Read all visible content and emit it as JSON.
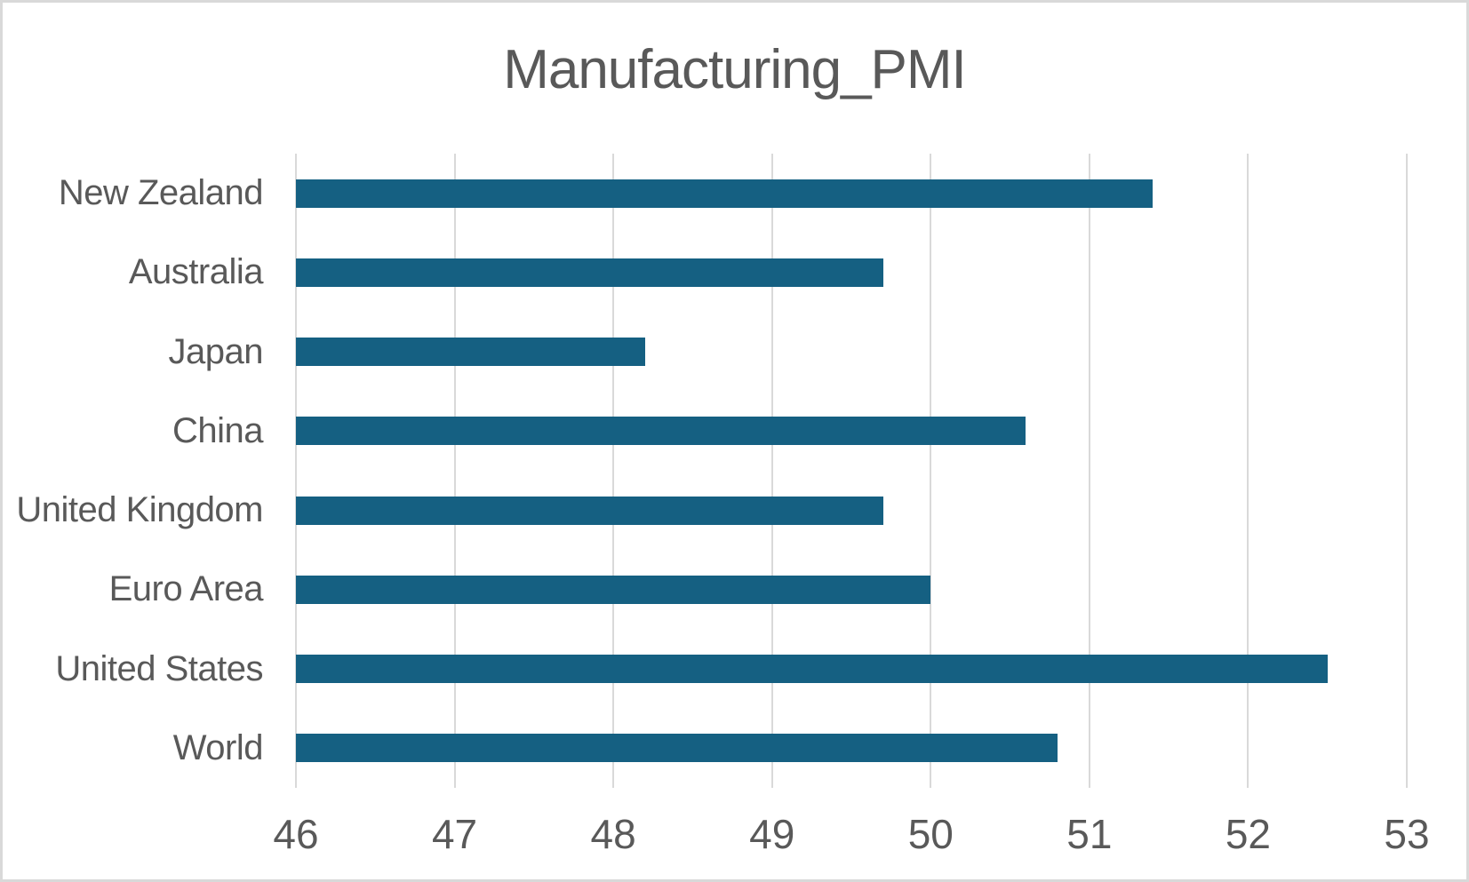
{
  "chart_data": {
    "type": "bar",
    "orientation": "horizontal",
    "title": "Manufacturing_PMI",
    "categories": [
      "New Zealand",
      "Australia",
      "Japan",
      "China",
      "United Kingdom",
      "Euro Area",
      "United States",
      "World"
    ],
    "values": [
      51.4,
      49.7,
      48.2,
      50.6,
      49.7,
      50.0,
      52.5,
      50.8
    ],
    "xlabel": "",
    "ylabel": "",
    "xlim": [
      46,
      53
    ],
    "x_ticks": [
      "46",
      "47",
      "48",
      "49",
      "50",
      "51",
      "52",
      "53"
    ],
    "grid": true,
    "legend": false
  },
  "colors": {
    "bar": "#156082",
    "gridline": "#d9d9d9",
    "text": "#595959",
    "frame_border": "#d9d9d9",
    "background": "#ffffff"
  }
}
